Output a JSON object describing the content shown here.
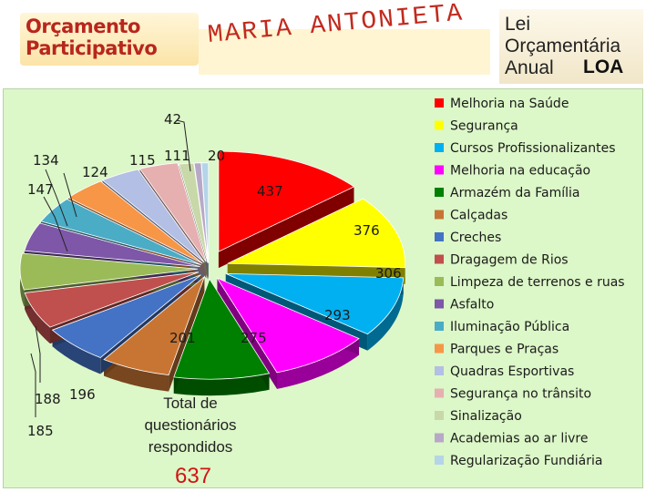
{
  "header": {
    "logo_line1": "Orçamento",
    "logo_line2": "Participativo",
    "subtitle": "MARIA ANTONIETA",
    "right_line1": "Lei",
    "right_line2": "Orçamentária",
    "right_line3": "Anual",
    "right_loa": "LOA"
  },
  "total": {
    "label_line1": "Total de",
    "label_line2": "questionários",
    "label_line3": "respondidos",
    "value": "637"
  },
  "chart_data": {
    "type": "pie",
    "categories": [
      "Melhoria na Saúde",
      "Segurança",
      "Cursos Profissionalizantes",
      "Melhoria na educação",
      "Armazém da Família",
      "Calçadas",
      "Creches",
      "Dragagem de Rios",
      "Limpeza de terrenos e ruas",
      "Asfalto",
      "Iluminação Pública",
      "Parques e Praças",
      "Quadras Esportivas",
      "Segurança no trânsito",
      "Sinalização",
      "Academias ao ar livre",
      "Regularização Fundiária"
    ],
    "values": [
      437,
      376,
      306,
      293,
      275,
      201,
      196,
      188,
      185,
      147,
      134,
      124,
      115,
      111,
      42,
      20,
      20
    ],
    "colors": [
      "#ff0000",
      "#ffff00",
      "#00b0f0",
      "#ff00ff",
      "#008000",
      "#c87533",
      "#4472c4",
      "#c0504d",
      "#9bbb59",
      "#7e57a8",
      "#4bacc6",
      "#f79646",
      "#b3bfe4",
      "#e6b0b0",
      "#c8d8a8",
      "#b8a8c8",
      "#b4d4e8"
    ],
    "legend_position": "right"
  }
}
